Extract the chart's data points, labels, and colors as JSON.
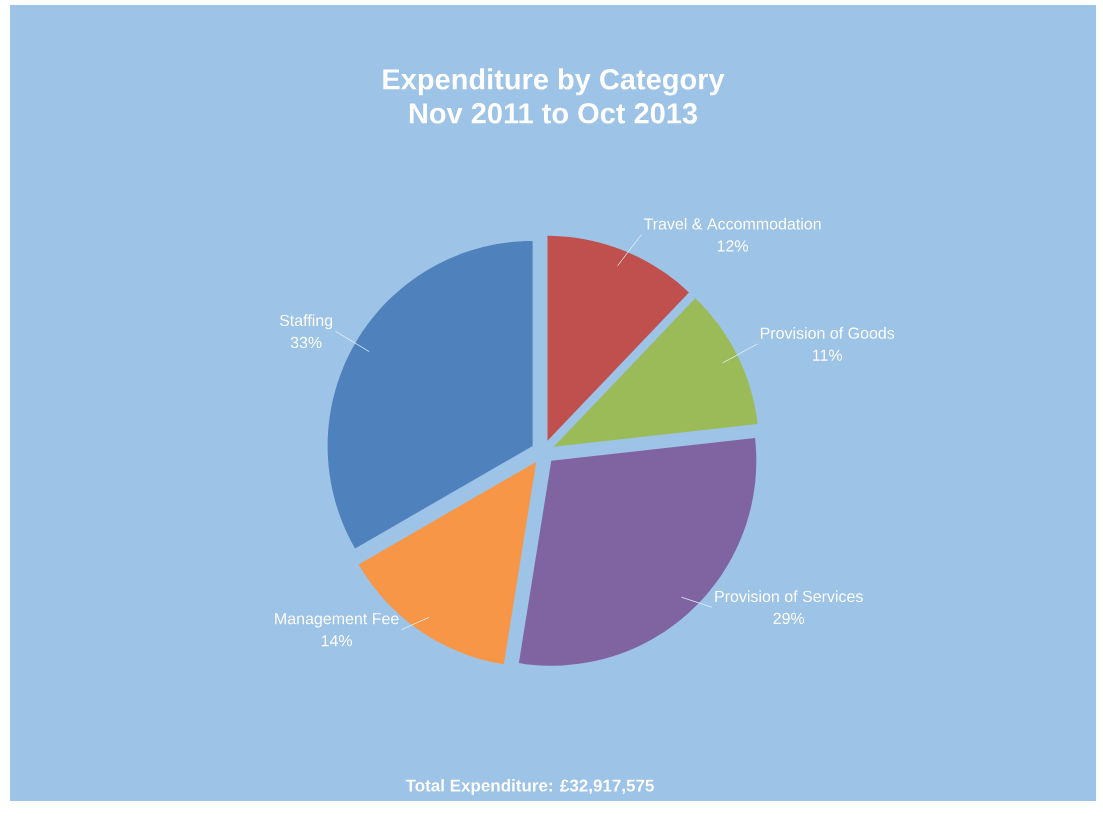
{
  "chart_data": {
    "type": "pie",
    "title": "Expenditure by Category",
    "subtitle": "Nov 2011 to Oct 2013",
    "categories": [
      "Travel & Accommodation",
      "Provision of Goods",
      "Provision of Services",
      "Management Fee",
      "Staffing"
    ],
    "values": [
      12,
      11,
      29,
      14,
      33
    ],
    "value_labels": [
      "12%",
      "11%",
      "29%",
      "14%",
      "33%"
    ],
    "colors": [
      "#c0504d",
      "#9bbb59",
      "#8064a2",
      "#f79646",
      "#4f81bd"
    ],
    "annotations": [
      "Total Expenditure:   £32,917,575"
    ]
  }
}
